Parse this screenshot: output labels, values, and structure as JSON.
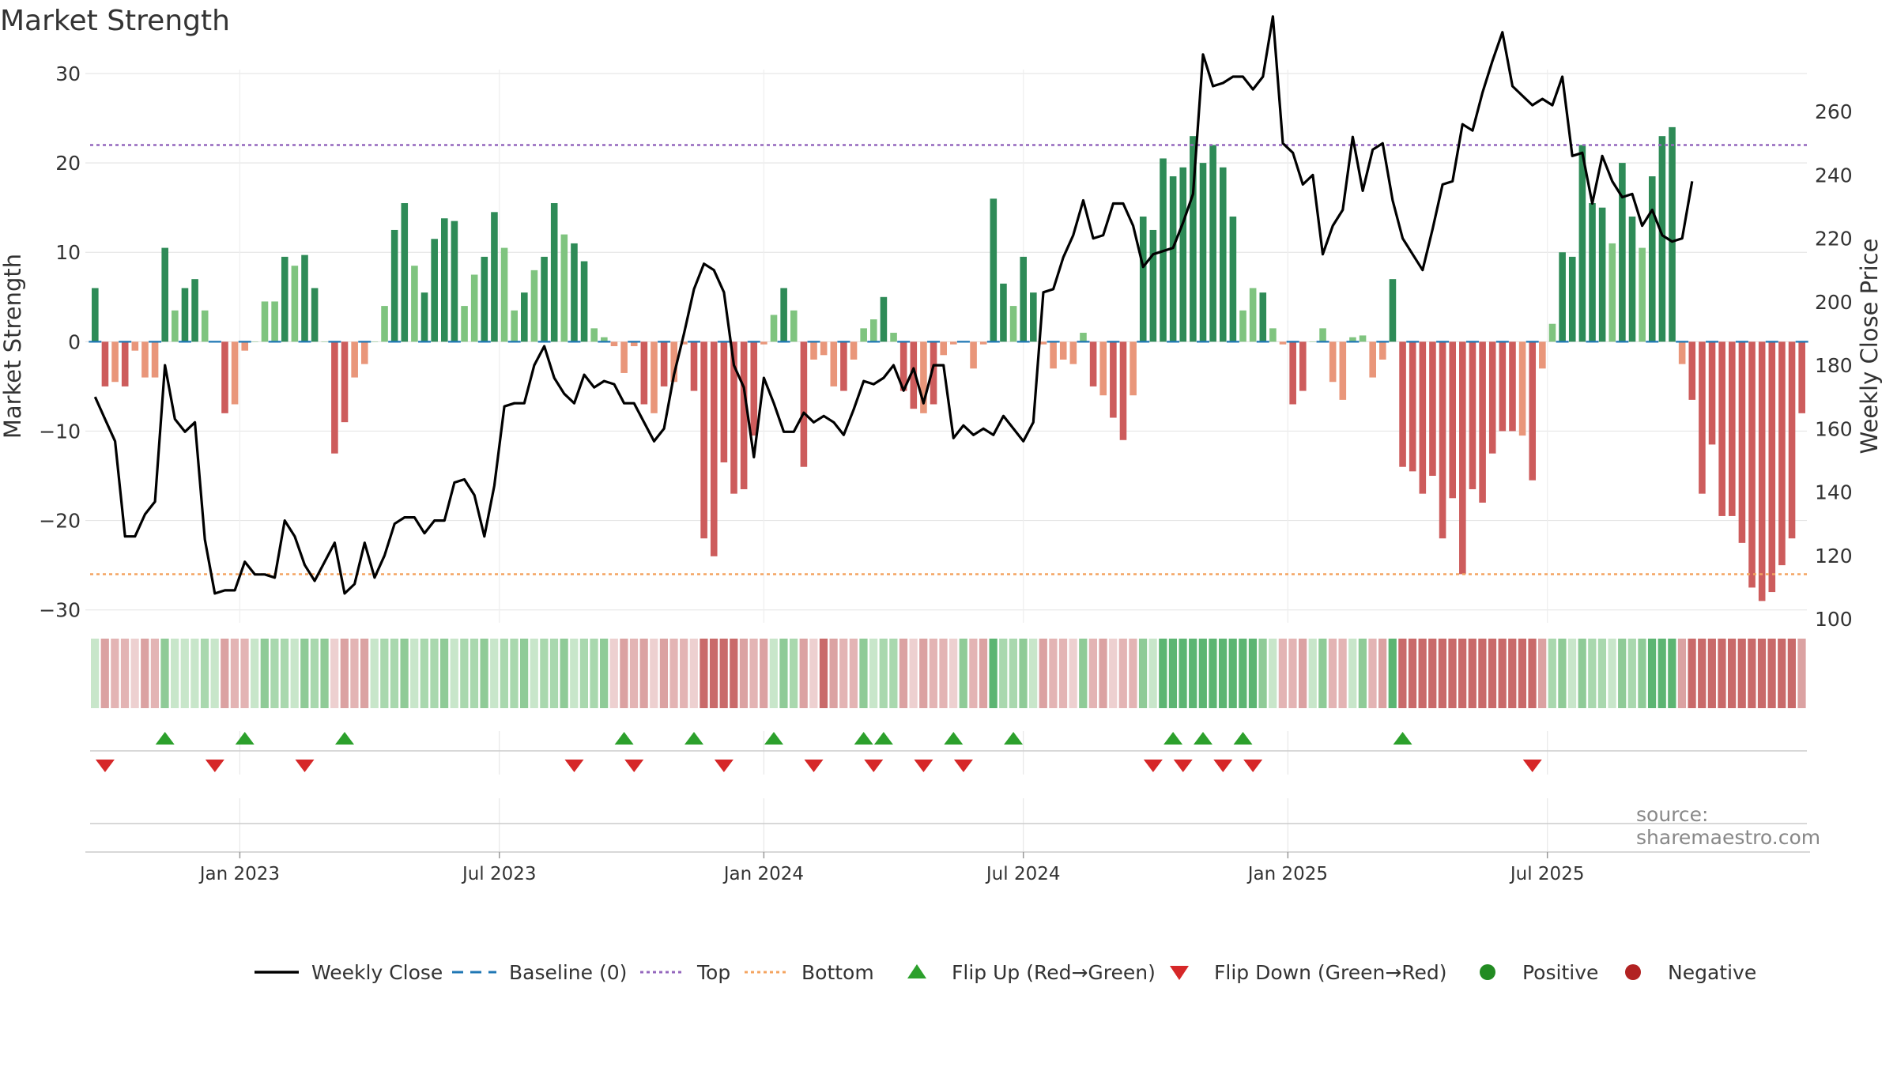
{
  "title": "Market Strength",
  "source": "source: sharemaestro.com",
  "colors": {
    "strong_pos": "#2e8b57",
    "weak_pos": "#7fc47f",
    "strong_neg": "#cd5c5c",
    "weak_neg": "#e9967a",
    "line": "#000000",
    "baseline": "#1f77b4",
    "top": "#9467bd",
    "bottom": "#f4a460",
    "flip_up": "#2ca02c",
    "flip_down": "#d62728",
    "positive": "#228b22",
    "negative": "#b22222"
  },
  "chart_data": {
    "type": "bar",
    "title": "Market Strength",
    "ylabel": "Market Strength",
    "ylabel_right": "Weekly Close Price",
    "ylim": [
      -31,
      30
    ],
    "ylim_right": [
      100,
      272
    ],
    "yticks_left": [
      -30,
      -20,
      -10,
      0,
      10,
      20,
      30
    ],
    "yticks_left_labels": [
      "−30",
      "−20",
      "−10",
      "0",
      "10",
      "20",
      "30"
    ],
    "yticks_right": [
      100,
      120,
      140,
      160,
      180,
      200,
      220,
      240,
      260
    ],
    "xtick_labels": [
      "Jan 2023",
      "Jul 2023",
      "Jan 2024",
      "Jul 2024",
      "Jan 2025",
      "Jul 2025"
    ],
    "xtick_weeks": [
      15,
      41,
      67.5,
      93.5,
      120,
      146
    ],
    "top_level": 22,
    "bottom_level": -26,
    "grid": true,
    "legend_position": "bottom",
    "strength": [
      6,
      -5,
      -4.5,
      -5,
      -1,
      -4,
      -4,
      10.5,
      3.5,
      6,
      7,
      3.5,
      0,
      -8,
      -7,
      -1,
      0,
      4.5,
      4.5,
      9.5,
      8.5,
      9.7,
      6,
      0,
      -12.5,
      -9,
      -4,
      -2.5,
      0,
      4,
      12.5,
      15.5,
      8.5,
      5.5,
      11.5,
      13.8,
      13.5,
      4,
      7.5,
      9.5,
      14.5,
      10.5,
      3.5,
      5.5,
      8,
      9.5,
      15.5,
      12,
      11,
      9,
      1.5,
      0.5,
      -0.5,
      -3.5,
      -0.5,
      -7,
      -8,
      -5,
      -4.5,
      -0.3,
      -5.5,
      -22,
      -24,
      -13.5,
      -17,
      -16.5,
      -10.5,
      -0.3,
      3,
      6,
      3.5,
      -14,
      -2,
      -1.5,
      -5,
      -5.5,
      -2,
      1.5,
      2.5,
      5,
      1,
      -5.5,
      -7.5,
      -8,
      -7,
      -1.5,
      -0.3,
      0,
      -3,
      -0.3,
      16,
      6.5,
      4,
      9.5,
      5.5,
      -0.3,
      -3,
      -2,
      -2.5,
      1,
      -5,
      -6,
      -8.5,
      -11,
      -6,
      14,
      12.5,
      20.5,
      18.5,
      19.5,
      23,
      20,
      22,
      19.5,
      14,
      3.5,
      6,
      5.5,
      1.5,
      -0.3,
      -7,
      -5.5,
      0,
      1.5,
      -4.5,
      -6.5,
      0.5,
      0.7,
      -4,
      -2,
      7,
      -14,
      -14.5,
      -17,
      -15,
      -22,
      -17.5,
      -26,
      -16.5,
      -18,
      -12.5,
      -10,
      -10,
      -10.5,
      -15.5,
      -3,
      2,
      10,
      9.5,
      22,
      15.5,
      15,
      11,
      20,
      14,
      10.5,
      18.5,
      23,
      24,
      -2.5,
      -6.5,
      -17,
      -11.5,
      -19.5,
      -19.5,
      -22.5,
      -27.5,
      -29,
      -28,
      -25,
      -22,
      -8
    ],
    "shades": [
      3,
      1,
      2,
      2,
      3,
      1,
      2,
      1,
      3,
      3,
      3,
      2,
      3,
      1,
      2,
      2,
      3,
      1,
      2,
      2,
      3,
      1,
      2,
      1,
      3,
      1,
      2,
      1,
      3,
      2,
      2,
      1,
      3,
      2,
      2,
      1,
      3,
      2,
      2,
      1,
      3,
      2,
      2,
      1,
      3,
      2,
      2,
      1,
      3,
      2,
      2,
      1,
      3,
      1,
      2,
      1,
      3,
      1,
      2,
      2,
      3,
      0,
      0,
      0,
      0,
      1,
      2,
      1,
      3,
      1,
      2,
      1,
      3,
      0,
      1,
      2,
      2,
      1,
      3,
      2,
      2,
      1,
      3,
      1,
      2,
      2,
      3,
      1,
      2,
      1,
      0,
      2,
      2,
      1,
      3,
      1,
      2,
      2,
      3,
      1,
      2,
      1,
      3,
      2,
      2,
      1,
      3,
      0,
      0,
      0,
      0,
      0,
      0,
      0,
      0,
      0,
      0,
      1,
      3,
      2,
      2,
      1,
      3,
      1,
      2,
      2,
      3,
      1,
      2,
      1,
      0,
      0,
      0,
      0,
      0,
      0,
      0,
      0,
      0,
      0,
      0,
      0,
      0,
      0,
      0,
      1,
      2,
      1,
      3,
      1,
      2,
      2,
      3,
      1,
      2,
      1,
      0,
      0,
      0,
      1,
      0,
      0,
      0,
      0,
      0,
      0,
      0,
      0,
      0,
      0,
      0,
      1
    ],
    "close": [
      170,
      163,
      156,
      126,
      126,
      133,
      137,
      180,
      163,
      159,
      162,
      125,
      108,
      109,
      109,
      118,
      114,
      114,
      113,
      131,
      126,
      117,
      112,
      118,
      124,
      108,
      111,
      124,
      113,
      120,
      130,
      132,
      132,
      127,
      131,
      131,
      143,
      144,
      139,
      126,
      142,
      167,
      168,
      168,
      180,
      186,
      176,
      171,
      168,
      177,
      173,
      175,
      174,
      168,
      168,
      162,
      156,
      160,
      177,
      190,
      204,
      212,
      210,
      203,
      180,
      173,
      151,
      176,
      168,
      159,
      159,
      165,
      162,
      164,
      162,
      158,
      166,
      175,
      174,
      176,
      180,
      172,
      179,
      168,
      180,
      180,
      157,
      161,
      158,
      160,
      158,
      164,
      160,
      156,
      162,
      203,
      204,
      214,
      221,
      232,
      220,
      221,
      231,
      231,
      224,
      211,
      215,
      216,
      217,
      225,
      234,
      278,
      268,
      269,
      271,
      271,
      267,
      271,
      290,
      250,
      247,
      237,
      240,
      215,
      224,
      229,
      252,
      235,
      248,
      250,
      232,
      220,
      215,
      210,
      223,
      237,
      238,
      256,
      254,
      266,
      276,
      285,
      268,
      265,
      262,
      264,
      262,
      271,
      246,
      247,
      231,
      246,
      238,
      233,
      234,
      224,
      229,
      221,
      219,
      220,
      238
    ]
  },
  "flips_up": [
    7,
    15,
    25,
    53,
    60,
    68,
    77,
    79,
    86,
    92,
    108,
    111,
    115,
    131
  ],
  "flips_down": [
    1,
    12,
    21,
    48,
    54,
    63,
    72,
    78,
    83,
    87,
    106,
    109,
    113,
    116,
    144
  ],
  "legend": {
    "weekly_close": "Weekly Close",
    "baseline": "Baseline (0)",
    "top": "Top",
    "bottom": "Bottom",
    "flip_up": "Flip Up (Red→Green)",
    "flip_down": "Flip Down (Green→Red)",
    "positive": "Positive",
    "negative": "Negative"
  }
}
